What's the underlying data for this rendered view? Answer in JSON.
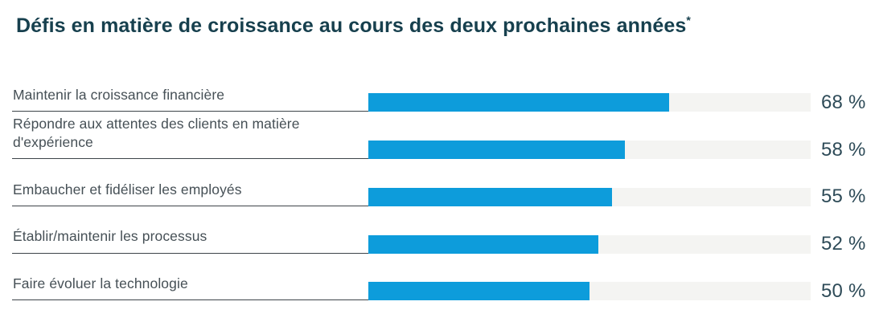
{
  "header": {
    "title": "Défis en matière de croissance au cours des deux prochaines années",
    "footnote_marker": "*"
  },
  "chart_data": {
    "type": "bar",
    "orientation": "horizontal",
    "title": "Défis en matière de croissance au cours des deux prochaines années*",
    "xlabel": "",
    "ylabel": "",
    "xlim": [
      0,
      100
    ],
    "grid": false,
    "legend": false,
    "categories": [
      "Maintenir la croissance financière",
      "Répondre aux attentes des clients en matière d'expérience",
      "Embaucher et fidéliser les employés",
      "Établir/maintenir les processus",
      "Faire évoluer la technologie"
    ],
    "values": [
      68,
      58,
      55,
      52,
      50
    ],
    "value_labels": [
      "68 %",
      "58 %",
      "55 %",
      "52 %",
      "50 %"
    ]
  },
  "colors": {
    "bar": "#0D9CDB",
    "track": "#F4F4F2",
    "title": "#17404E",
    "label": "#465056",
    "value": "#2E4B58",
    "rule": "#3D4449",
    "background": "#FFFFFF"
  }
}
